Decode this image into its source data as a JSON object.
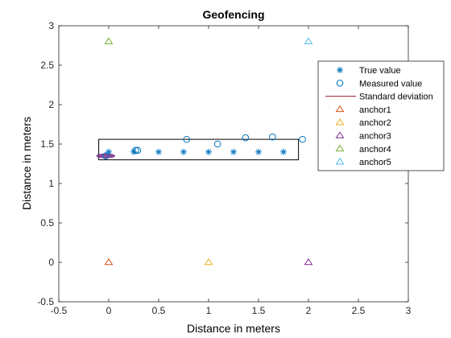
{
  "chart_data": {
    "type": "scatter",
    "title": "Geofencing",
    "xlabel": "Distance in meters",
    "ylabel": "Distance in meters",
    "xlim": [
      -0.5,
      3
    ],
    "ylim": [
      -0.5,
      3
    ],
    "xticks": [
      -0.5,
      0,
      0.5,
      1,
      1.5,
      2,
      2.5,
      3
    ],
    "xtick_labels": [
      "-0.5",
      "0",
      "0.5",
      "1",
      "1.5",
      "2",
      "2.5",
      "3"
    ],
    "yticks": [
      -0.5,
      0,
      0.5,
      1,
      1.5,
      2,
      2.5,
      3
    ],
    "ytick_labels": [
      "-0.5",
      "0",
      "0.5",
      "1",
      "1.5",
      "2",
      "2.5",
      "3"
    ],
    "grid": false,
    "legend_position": "right",
    "geofence_rectangle": {
      "x": [
        -0.1,
        1.9
      ],
      "y": [
        1.3,
        1.56
      ],
      "color": "#000000"
    },
    "series": [
      {
        "name": "True value",
        "marker": "asterisk",
        "color": "#0072BD",
        "points": [
          [
            0,
            1.4
          ],
          [
            0.25,
            1.4
          ],
          [
            0.5,
            1.4
          ],
          [
            0.75,
            1.4
          ],
          [
            1.0,
            1.4
          ],
          [
            1.25,
            1.4
          ],
          [
            1.5,
            1.4
          ],
          [
            1.75,
            1.4
          ]
        ]
      },
      {
        "name": "Measured value",
        "marker": "circle",
        "color": "#0072BD",
        "points": [
          [
            -0.03,
            1.35
          ],
          [
            0.27,
            1.42
          ],
          [
            0.29,
            1.42
          ],
          [
            0.78,
            1.56
          ],
          [
            1.09,
            1.5
          ],
          [
            1.37,
            1.58
          ],
          [
            1.64,
            1.59
          ],
          [
            1.94,
            1.56
          ]
        ]
      },
      {
        "name": "Standard deviation",
        "marker": "ellipse",
        "color": "#7E2F8E",
        "legend_color": "#A2142F",
        "ellipses": [
          {
            "cx": -0.03,
            "cy": 1.35,
            "rx": 0.09,
            "ry": 0.025
          }
        ]
      },
      {
        "name": "anchor1",
        "marker": "triangle",
        "color": "#D95319",
        "points": [
          [
            0,
            0
          ]
        ]
      },
      {
        "name": "anchor2",
        "marker": "triangle",
        "color": "#EDB120",
        "points": [
          [
            1,
            0
          ]
        ]
      },
      {
        "name": "anchor3",
        "marker": "triangle",
        "color": "#7E2F8E",
        "points": [
          [
            2,
            0
          ]
        ]
      },
      {
        "name": "anchor4",
        "marker": "triangle",
        "color": "#77AC30",
        "points": [
          [
            0,
            2.8
          ]
        ]
      },
      {
        "name": "anchor5",
        "marker": "triangle",
        "color": "#4DBEEE",
        "points": [
          [
            2,
            2.8
          ]
        ]
      }
    ]
  }
}
